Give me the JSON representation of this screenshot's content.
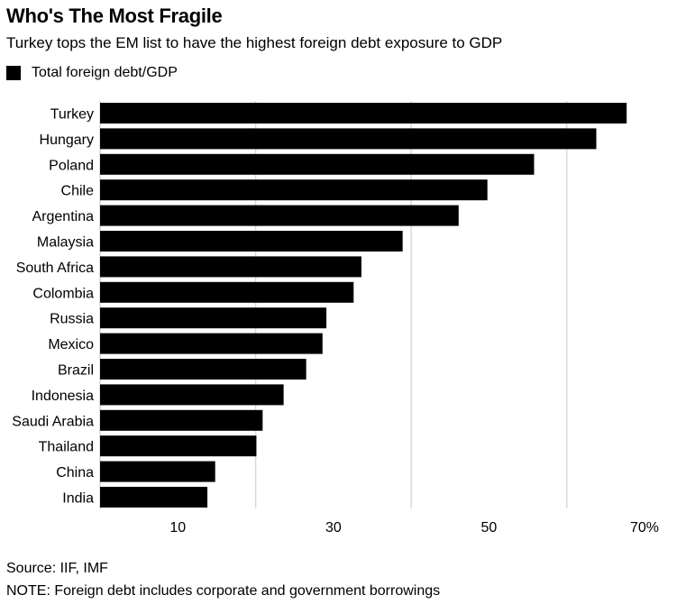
{
  "title": "Who's The Most Fragile",
  "subtitle": "Turkey tops the EM list to have the highest foreign debt exposure to GDP",
  "source": "Source: IIF, IMF",
  "note": "NOTE: Foreign debt includes corporate and government borrowings",
  "chart_data": {
    "type": "bar",
    "orientation": "horizontal",
    "categories": [
      "Turkey",
      "Hungary",
      "Poland",
      "Chile",
      "Argentina",
      "Malaysia",
      "South Africa",
      "Colombia",
      "Russia",
      "Mexico",
      "Brazil",
      "Indonesia",
      "Saudi Arabia",
      "Thailand",
      "China",
      "India"
    ],
    "series": [
      {
        "name": "Total foreign debt/GDP",
        "values": [
          67.7,
          63.8,
          55.8,
          49.8,
          46.1,
          38.9,
          33.6,
          32.6,
          29.1,
          28.6,
          26.5,
          23.6,
          20.9,
          20.1,
          14.8,
          13.8
        ],
        "color": "#000000"
      }
    ],
    "xlim": [
      0,
      70
    ],
    "xticks": [
      10,
      30,
      50,
      70
    ],
    "xtick_labels": [
      "10",
      "30",
      "50",
      "70%"
    ],
    "gridlines": [
      20,
      40,
      60
    ],
    "grid": true,
    "grid_color": "#d9d9d9",
    "legend": "top-left"
  }
}
